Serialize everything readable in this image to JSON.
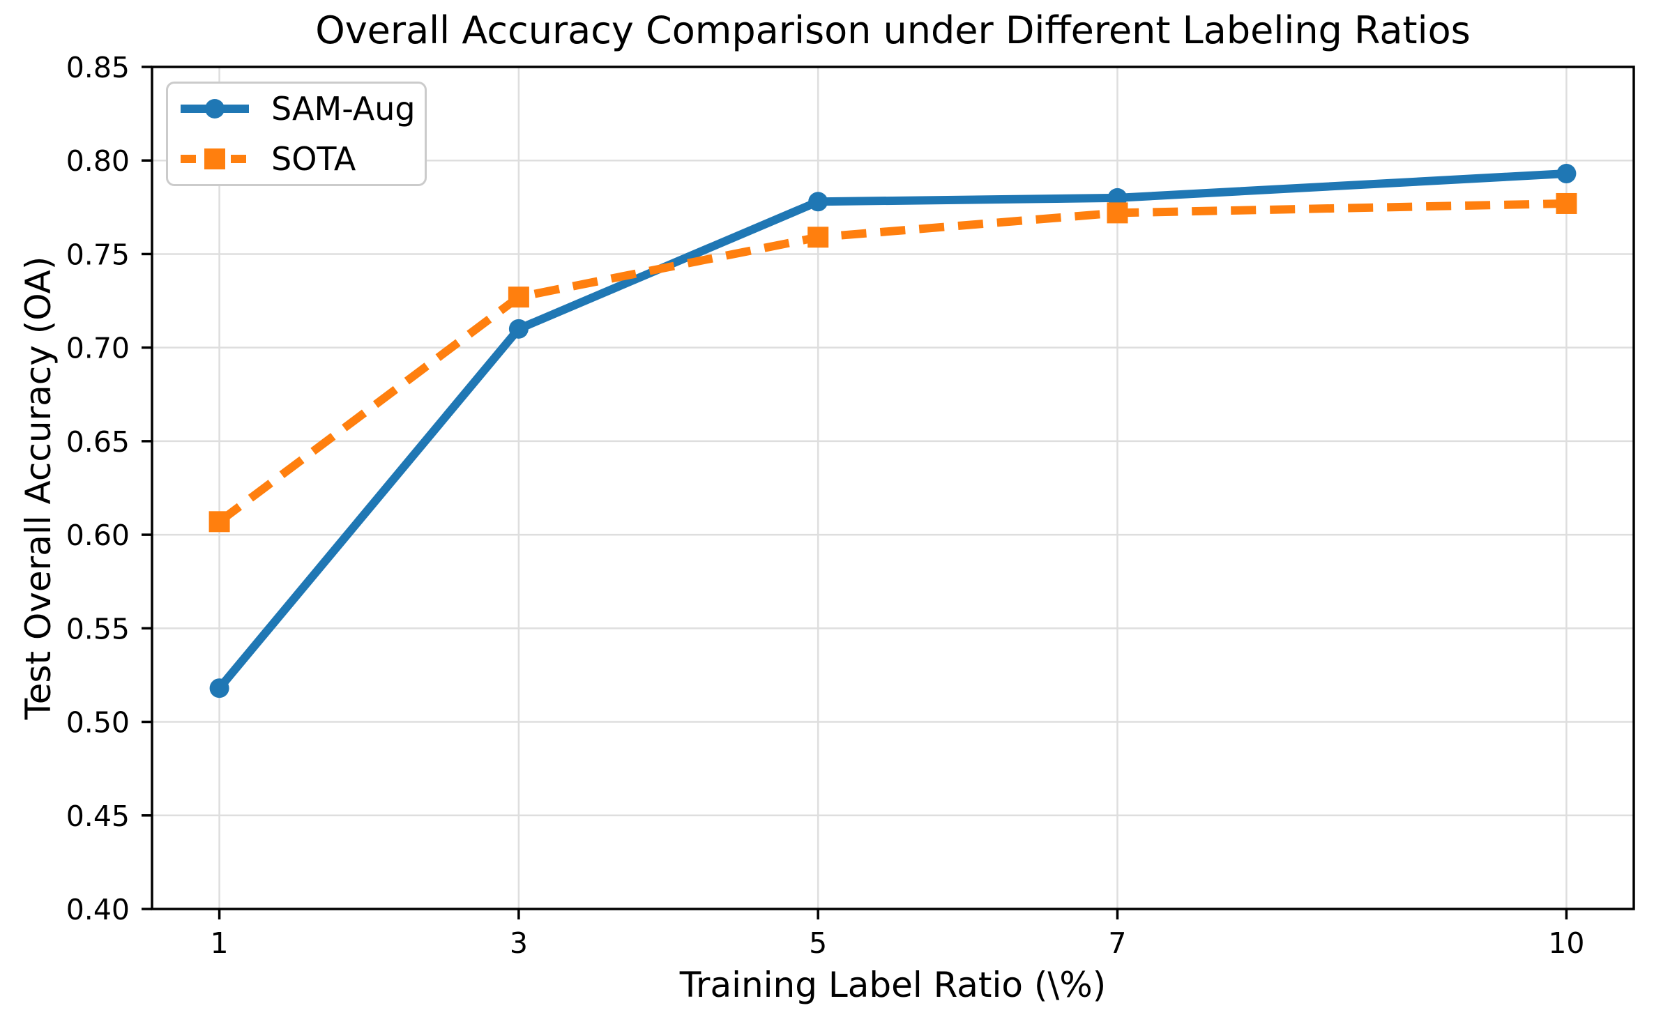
{
  "chart_data": {
    "type": "line",
    "title": "Overall Accuracy Comparison under Different Labeling Ratios",
    "xlabel": "Training Label Ratio (\\%)",
    "ylabel": "Test Overall Accuracy (OA)",
    "x": [
      1,
      3,
      5,
      7,
      10
    ],
    "xtick_labels": [
      "1",
      "3",
      "5",
      "7",
      "10"
    ],
    "yticks": [
      0.4,
      0.45,
      0.5,
      0.55,
      0.6,
      0.65,
      0.7,
      0.75,
      0.8,
      0.85
    ],
    "ytick_labels": [
      "0.40",
      "0.45",
      "0.50",
      "0.55",
      "0.60",
      "0.65",
      "0.70",
      "0.75",
      "0.80",
      "0.85"
    ],
    "xlim": [
      0.55,
      10.45
    ],
    "ylim": [
      0.4,
      0.85
    ],
    "grid": true,
    "legend_position": "upper-left",
    "colors": {
      "grid": "#dedede",
      "axes": "#000000",
      "legend_border": "#cbcbcb"
    },
    "series": [
      {
        "name": "SAM-Aug",
        "color": "#1f77b4",
        "line_style": "solid",
        "marker": "circle",
        "values": [
          0.518,
          0.71,
          0.778,
          0.78,
          0.793
        ]
      },
      {
        "name": "SOTA",
        "color": "#ff7f0e",
        "line_style": "dashed",
        "marker": "square",
        "values": [
          0.607,
          0.727,
          0.759,
          0.772,
          0.777
        ]
      }
    ]
  }
}
